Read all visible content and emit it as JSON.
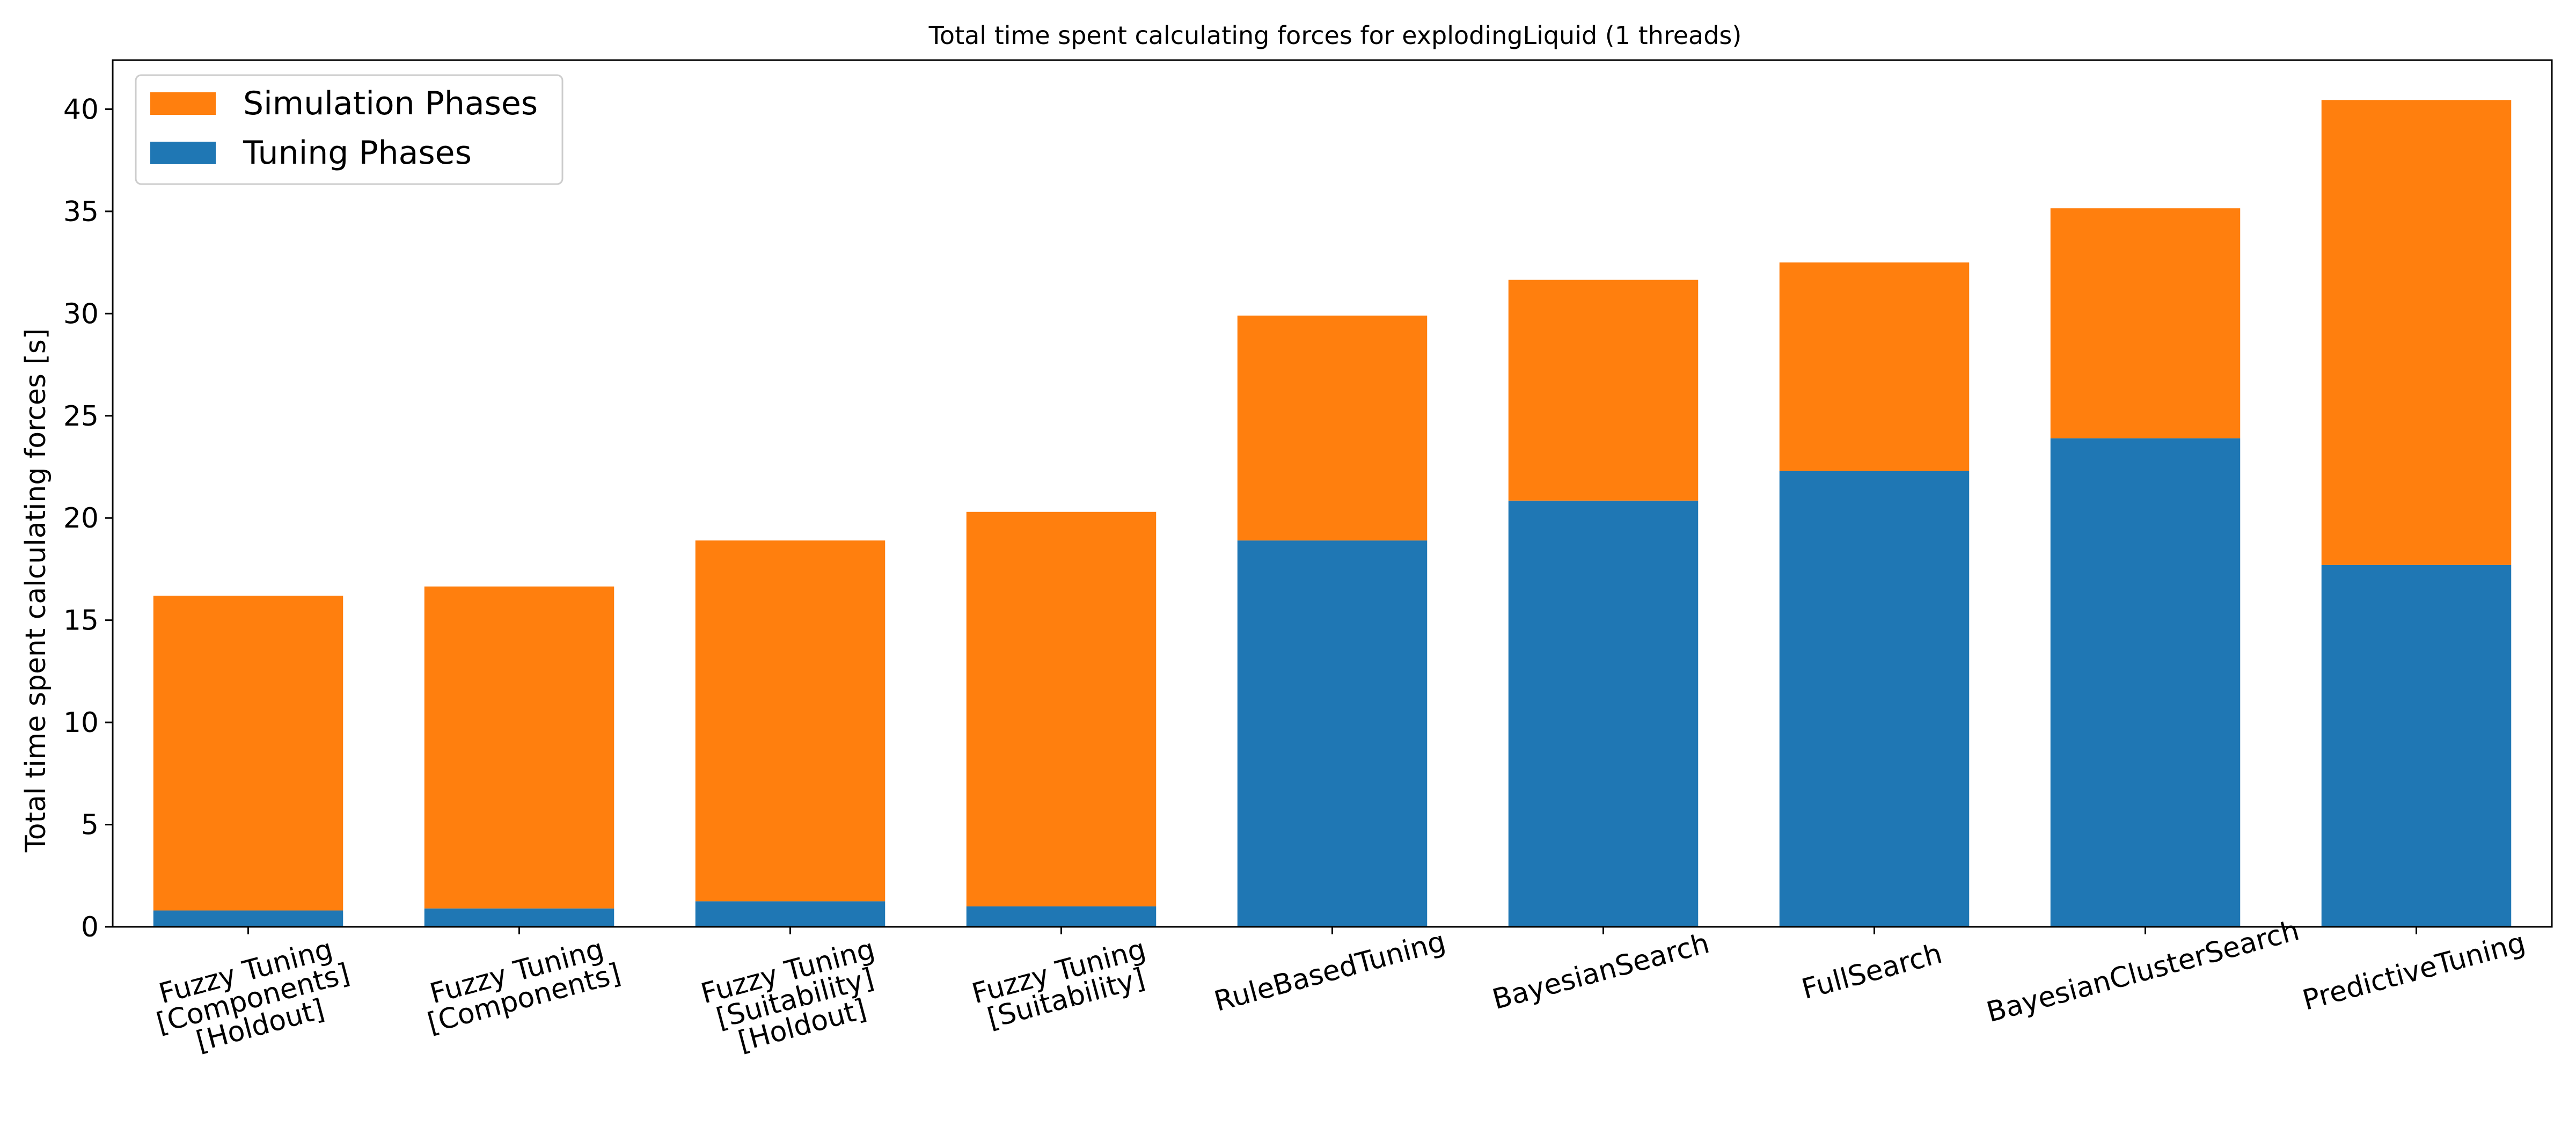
{
  "chart_data": {
    "type": "bar",
    "stacked": true,
    "title": "Total time spent calculating forces for explodingLiquid (1 threads)",
    "xlabel": "",
    "ylabel": "Total time spent calculating forces [s]",
    "ylim": [
      0,
      42.4
    ],
    "yticks": [
      0,
      5,
      10,
      15,
      20,
      25,
      30,
      35,
      40
    ],
    "grid": false,
    "legend_position": "top-left",
    "categories": [
      "Fuzzy Tuning\n[Components]\n[Holdout]",
      "Fuzzy Tuning\n[Components]",
      "Fuzzy Tuning\n[Suitability]\n[Holdout]",
      "Fuzzy Tuning\n[Suitability]",
      "RuleBasedTuning",
      "BayesianSearch",
      "FullSearch",
      "BayesianClusterSearch",
      "PredictiveTuning"
    ],
    "series": [
      {
        "name": "Tuning Phases",
        "color": "#1f77b4",
        "values": [
          0.8,
          0.9,
          1.25,
          1.0,
          18.9,
          20.85,
          22.3,
          23.9,
          17.7
        ]
      },
      {
        "name": "Simulation Phases",
        "color": "#ff7f0e",
        "values": [
          15.4,
          15.75,
          17.65,
          19.3,
          11.0,
          10.8,
          10.2,
          11.25,
          22.75
        ]
      }
    ],
    "legend_order": [
      "Simulation Phases",
      "Tuning Phases"
    ]
  }
}
